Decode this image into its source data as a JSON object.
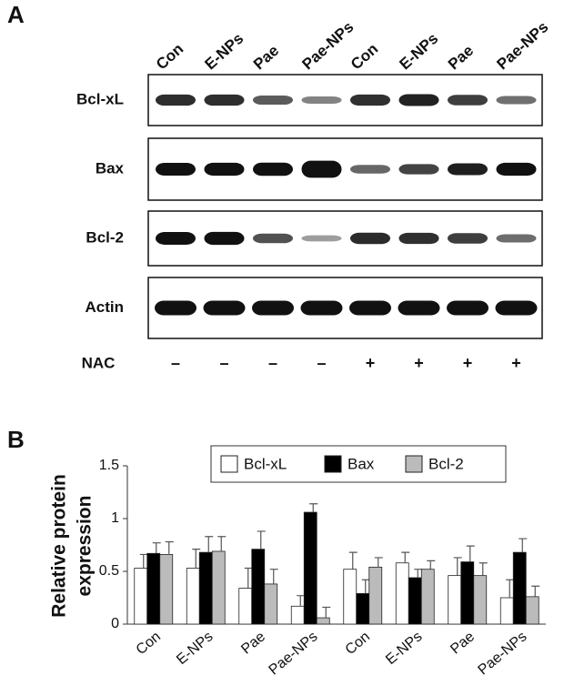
{
  "panel_a": {
    "label": "A",
    "lanes": [
      "Con",
      "E-NPs",
      "Pae",
      "Pae-NPs",
      "Con",
      "E-NPs",
      "Pae",
      "Pae-NPs"
    ],
    "rows": [
      "Bcl-xL",
      "Bax",
      "Bcl-2",
      "Actin"
    ],
    "treatment_label": "NAC",
    "treatment_signs": [
      "–",
      "–",
      "–",
      "–",
      "+",
      "+",
      "+",
      "+"
    ]
  },
  "chart_data": {
    "type": "bar",
    "panel_label": "B",
    "ylabel": [
      "Relative protein",
      "expression"
    ],
    "categories": [
      "Con",
      "E-NPs",
      "Pae",
      "Pae-NPs",
      "Con",
      "E-NPs",
      "Pae",
      "Pae-NPs"
    ],
    "series": [
      {
        "name": "Bcl-xL",
        "color": "#ffffff",
        "values": [
          0.53,
          0.53,
          0.34,
          0.17,
          0.52,
          0.58,
          0.46,
          0.25
        ],
        "errors": [
          0.13,
          0.18,
          0.19,
          0.1,
          0.16,
          0.1,
          0.17,
          0.17
        ]
      },
      {
        "name": "Bax",
        "color": "#000000",
        "values": [
          0.67,
          0.68,
          0.71,
          1.06,
          0.29,
          0.44,
          0.59,
          0.68
        ],
        "errors": [
          0.1,
          0.15,
          0.17,
          0.08,
          0.13,
          0.08,
          0.15,
          0.13
        ]
      },
      {
        "name": "Bcl-2",
        "color": "#bbbbbb",
        "values": [
          0.66,
          0.69,
          0.38,
          0.06,
          0.54,
          0.52,
          0.46,
          0.26
        ],
        "errors": [
          0.12,
          0.14,
          0.14,
          0.1,
          0.09,
          0.08,
          0.12,
          0.1
        ]
      }
    ],
    "ylim": [
      0,
      1.5
    ],
    "yticks": [
      0,
      0.5,
      1,
      1.5
    ],
    "legend": "top"
  }
}
